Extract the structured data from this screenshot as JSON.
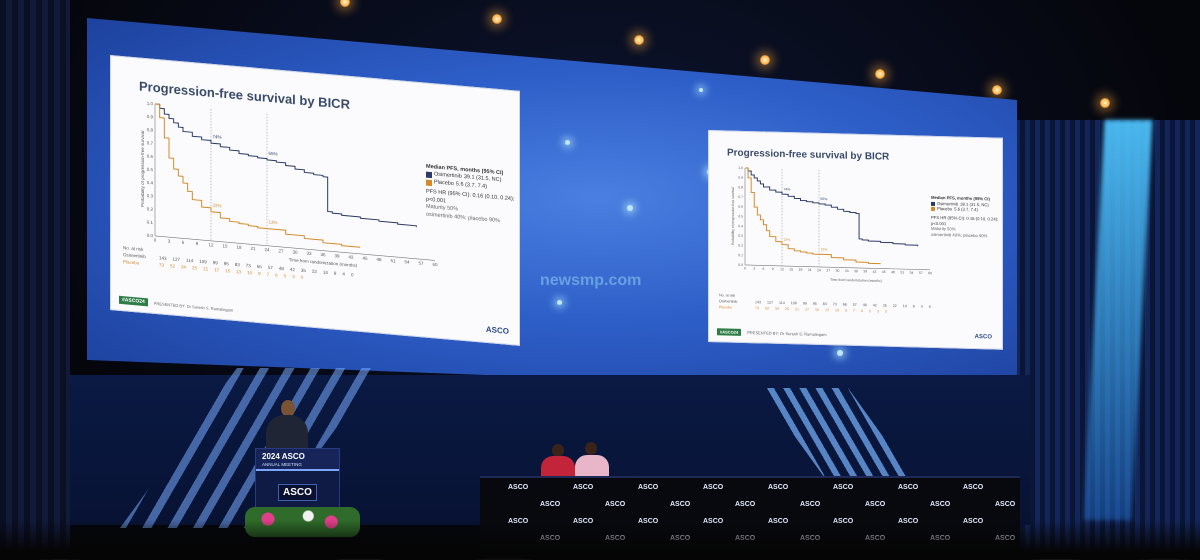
{
  "event": {
    "podium_title": "2024 ASCO",
    "podium_subtitle": "ANNUAL MEETING",
    "podium_logo": "ASCO",
    "desk_logo": "ASCO"
  },
  "slide": {
    "title": "Progression-free survival by BICR",
    "y_label": "Probability of progression-free survival",
    "x_label": "Time from randomization (months)",
    "legend": {
      "header": "Median PFS, months (95% CI)",
      "arms": [
        {
          "name": "Osimertinib",
          "value": "39.1 (31.5, NC)",
          "color": "#2b3a67"
        },
        {
          "name": "Placebo",
          "value": "5.6 (3.7, 7.4)",
          "color": "#d58a2a"
        }
      ],
      "hr": "PFS HR (95% CI): 0.16 (0.10, 0.24); p<0.001",
      "maturity": "Maturity 50%",
      "maturity_detail": "osimertinib 40%; placebo 90%"
    },
    "annotations": {
      "osim_12m": "74%",
      "osim_24m": "65%",
      "pla_12m": "22%",
      "pla_24m": "13%"
    },
    "risk_table": {
      "header": "No. at risk",
      "osimertinib": [
        "143",
        "127",
        "114",
        "109",
        "99",
        "95",
        "83",
        "73",
        "66",
        "57",
        "48",
        "42",
        "35",
        "22",
        "14",
        "8",
        "4",
        "0"
      ],
      "placebo": [
        "73",
        "52",
        "34",
        "25",
        "21",
        "17",
        "15",
        "13",
        "10",
        "9",
        "7",
        "6",
        "5",
        "3",
        "0",
        "",
        "",
        ""
      ]
    },
    "footer": {
      "hashtag": "#ASCO24",
      "presenter": "PRESENTED BY: Dr Suresh S. Ramalingam",
      "logo": "ASCO"
    }
  },
  "watermark": "newsmp.com",
  "chart_data": {
    "type": "line",
    "title": "Progression-free survival by BICR",
    "xlabel": "Time from randomization (months)",
    "ylabel": "Probability of progression-free survival",
    "xlim": [
      0,
      60
    ],
    "ylim": [
      0,
      1.0
    ],
    "x_ticks": [
      0,
      3,
      6,
      9,
      12,
      15,
      18,
      21,
      24,
      27,
      30,
      33,
      36,
      39,
      42,
      45,
      48,
      51,
      54,
      57,
      60
    ],
    "y_ticks": [
      0,
      0.1,
      0.2,
      0.3,
      0.4,
      0.5,
      0.6,
      0.7,
      0.8,
      0.9,
      1.0
    ],
    "series": [
      {
        "name": "Osimertinib",
        "x": [
          0,
          1,
          2,
          3,
          4,
          5,
          6,
          8,
          10,
          12,
          14,
          16,
          18,
          20,
          22,
          24,
          26,
          28,
          30,
          32,
          34,
          36,
          37,
          38,
          40,
          44,
          48,
          52,
          56
        ],
        "y": [
          1.0,
          0.97,
          0.93,
          0.9,
          0.87,
          0.84,
          0.81,
          0.78,
          0.76,
          0.74,
          0.72,
          0.7,
          0.68,
          0.67,
          0.66,
          0.65,
          0.64,
          0.62,
          0.6,
          0.58,
          0.57,
          0.56,
          0.3,
          0.29,
          0.28,
          0.27,
          0.26,
          0.25,
          0.24
        ]
      },
      {
        "name": "Placebo",
        "x": [
          0,
          1,
          2,
          3,
          4,
          5,
          6,
          7,
          8,
          10,
          12,
          14,
          16,
          18,
          20,
          22,
          24,
          28,
          32,
          36,
          40,
          44
        ],
        "y": [
          1.0,
          0.9,
          0.75,
          0.6,
          0.52,
          0.47,
          0.42,
          0.36,
          0.3,
          0.25,
          0.22,
          0.18,
          0.16,
          0.15,
          0.14,
          0.13,
          0.13,
          0.1,
          0.08,
          0.06,
          0.05,
          0.05
        ]
      }
    ]
  }
}
